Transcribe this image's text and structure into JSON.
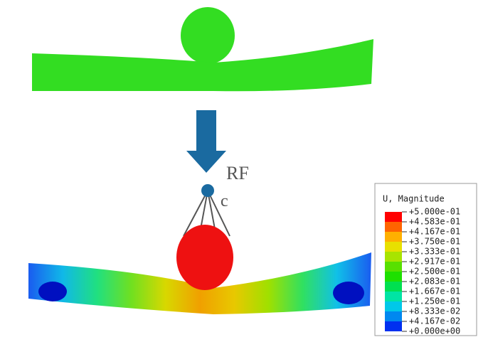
{
  "figure": {
    "label_rf": "RF",
    "label_c": "c"
  },
  "legend": {
    "title": "U, Magnitude",
    "labels": [
      "+5.000e-01",
      "+4.583e-01",
      "+4.167e-01",
      "+3.750e-01",
      "+3.333e-01",
      "+2.917e-01",
      "+2.500e-01",
      "+2.083e-01",
      "+1.667e-01",
      "+1.250e-01",
      "+8.333e-02",
      "+4.167e-02",
      "+0.000e+00"
    ],
    "colors": [
      "#ff0000",
      "#ff6400",
      "#ffb000",
      "#e8e000",
      "#a8e400",
      "#58e000",
      "#1ee000",
      "#00e050",
      "#00e4a4",
      "#00c8e8",
      "#0088f0",
      "#0030f0"
    ]
  }
}
